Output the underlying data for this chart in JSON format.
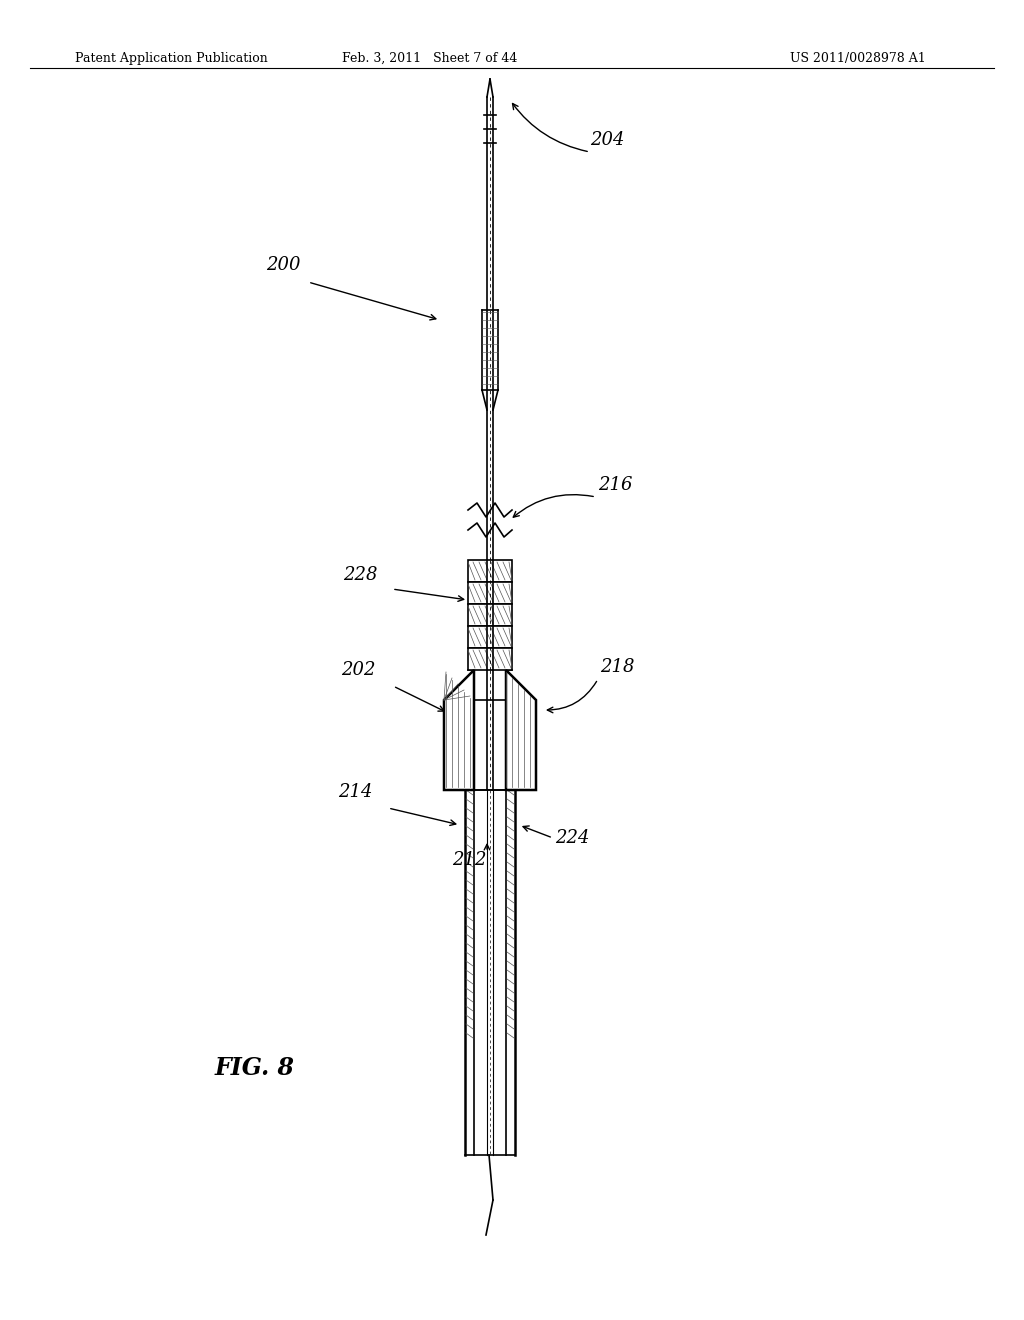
{
  "bg_color": "#ffffff",
  "header_left": "Patent Application Publication",
  "header_mid": "Feb. 3, 2011   Sheet 7 of 44",
  "header_right": "US 2011/0028978 A1",
  "fig_label": "FIG. 8",
  "label_200": "200",
  "label_202": "202",
  "label_204": "204",
  "label_212": "212",
  "label_214": "214",
  "label_216": "216",
  "label_218": "218",
  "label_224": "224",
  "label_228": "228"
}
